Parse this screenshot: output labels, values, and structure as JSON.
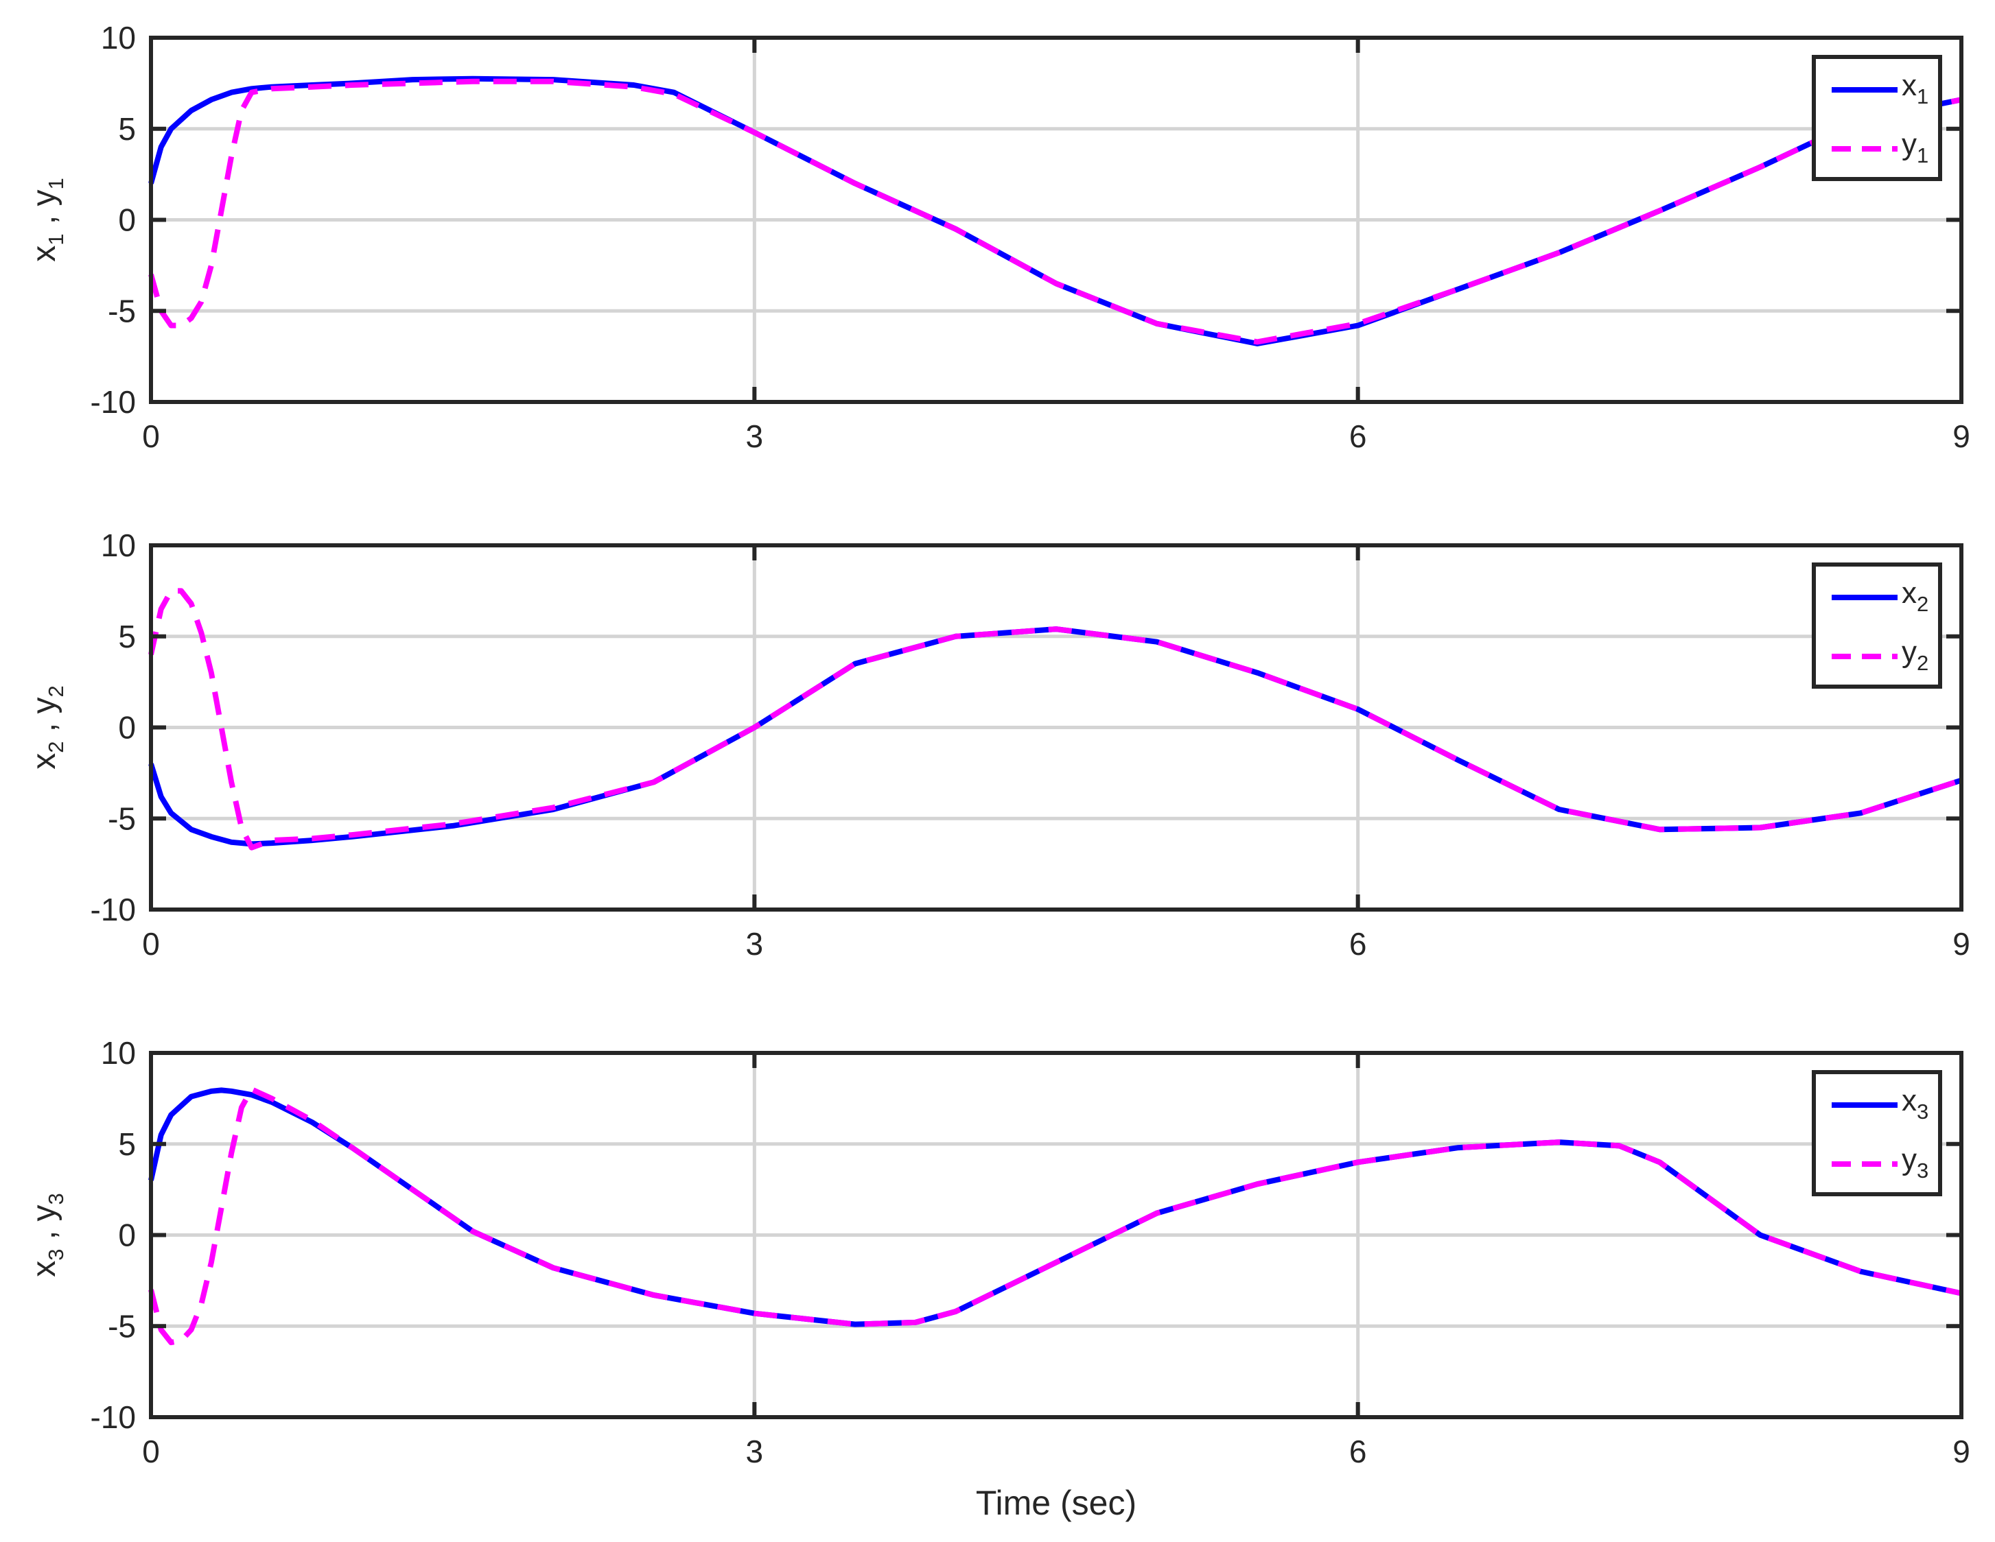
{
  "colors": {
    "x_series": "#0000ff",
    "y_series": "#ff00ff",
    "axes": "#262626",
    "grid": "#d4d4d4"
  },
  "shared_xlabel": "Time (sec)",
  "chart_data": [
    {
      "type": "line",
      "ylabel": {
        "var1": "x",
        "sub1": "1",
        "sep": " , ",
        "var2": "y",
        "sub2": "1"
      },
      "xlim": [
        0,
        9
      ],
      "ylim": [
        -10,
        10
      ],
      "xticks": [
        "0",
        "3",
        "6",
        "9"
      ],
      "yticks": [
        "10",
        "5",
        "0",
        "-5",
        "-10"
      ],
      "grid": true,
      "legend_position": "top-right",
      "series": [
        {
          "name": "x1",
          "label": {
            "var": "x",
            "sub": "1"
          },
          "style": "solid",
          "x": [
            0,
            0.05,
            0.1,
            0.2,
            0.3,
            0.4,
            0.5,
            0.6,
            0.8,
            1.0,
            1.3,
            1.6,
            2.0,
            2.4,
            2.6,
            3.0,
            3.5,
            4.0,
            4.5,
            5.0,
            5.5,
            6.0,
            6.5,
            7.0,
            7.5,
            8.0,
            8.5,
            9.0
          ],
          "y": [
            2.0,
            4.0,
            5.0,
            6.0,
            6.6,
            7.0,
            7.2,
            7.3,
            7.4,
            7.5,
            7.7,
            7.75,
            7.7,
            7.4,
            7.0,
            4.8,
            2.0,
            -0.5,
            -3.5,
            -5.7,
            -6.8,
            -5.8,
            -3.8,
            -1.8,
            0.5,
            2.9,
            5.5,
            6.6
          ]
        },
        {
          "name": "y1",
          "label": {
            "var": "y",
            "sub": "1"
          },
          "style": "dashed",
          "x": [
            0,
            0.05,
            0.1,
            0.15,
            0.2,
            0.25,
            0.3,
            0.35,
            0.4,
            0.45,
            0.5,
            0.6,
            0.8,
            1.0,
            1.3,
            1.6,
            2.0,
            2.4,
            2.6,
            3.0,
            3.5,
            4.0,
            4.5,
            5.0,
            5.5,
            6.0,
            6.5,
            7.0,
            7.5,
            8.0,
            8.5,
            9.0
          ],
          "y": [
            -3.0,
            -5.0,
            -5.8,
            -5.8,
            -5.4,
            -4.5,
            -2.5,
            0.5,
            3.5,
            6.0,
            7.0,
            7.2,
            7.3,
            7.4,
            7.5,
            7.6,
            7.6,
            7.3,
            6.9,
            4.8,
            2.0,
            -0.5,
            -3.5,
            -5.7,
            -6.7,
            -5.7,
            -3.8,
            -1.8,
            0.5,
            2.9,
            5.5,
            6.6
          ]
        }
      ]
    },
    {
      "type": "line",
      "ylabel": {
        "var1": "x",
        "sub1": "2",
        "sep": " , ",
        "var2": "y",
        "sub2": "2"
      },
      "xlim": [
        0,
        9
      ],
      "ylim": [
        -10,
        10
      ],
      "xticks": [
        "0",
        "3",
        "6",
        "9"
      ],
      "yticks": [
        "10",
        "5",
        "0",
        "-5",
        "-10"
      ],
      "grid": true,
      "legend_position": "top-right",
      "series": [
        {
          "name": "x2",
          "label": {
            "var": "x",
            "sub": "2"
          },
          "style": "solid",
          "x": [
            0,
            0.05,
            0.1,
            0.2,
            0.3,
            0.4,
            0.5,
            0.6,
            0.8,
            1.0,
            1.5,
            2.0,
            2.5,
            3.0,
            3.5,
            4.0,
            4.5,
            5.0,
            5.5,
            6.0,
            6.5,
            7.0,
            7.5,
            8.0,
            8.5,
            9.0
          ],
          "y": [
            -2.0,
            -3.8,
            -4.7,
            -5.6,
            -6.0,
            -6.3,
            -6.4,
            -6.35,
            -6.2,
            -6.0,
            -5.4,
            -4.5,
            -3.0,
            0.0,
            3.5,
            5.0,
            5.4,
            4.7,
            3.0,
            1.0,
            -1.8,
            -4.5,
            -5.6,
            -5.5,
            -4.7,
            -2.9
          ]
        },
        {
          "name": "y2",
          "label": {
            "var": "y",
            "sub": "2"
          },
          "style": "dashed",
          "x": [
            0,
            0.05,
            0.1,
            0.15,
            0.2,
            0.25,
            0.3,
            0.35,
            0.4,
            0.45,
            0.5,
            0.6,
            0.8,
            1.0,
            1.5,
            2.0,
            2.5,
            3.0,
            3.5,
            4.0,
            4.5,
            5.0,
            5.5,
            6.0,
            6.5,
            7.0,
            7.5,
            8.0,
            8.5,
            9.0
          ],
          "y": [
            4.0,
            6.5,
            7.5,
            7.5,
            6.8,
            5.2,
            3.0,
            0.0,
            -3.0,
            -5.5,
            -6.6,
            -6.2,
            -6.1,
            -5.9,
            -5.3,
            -4.4,
            -3.0,
            0.0,
            3.5,
            5.0,
            5.4,
            4.7,
            3.0,
            1.0,
            -1.8,
            -4.5,
            -5.6,
            -5.5,
            -4.7,
            -2.9
          ]
        }
      ]
    },
    {
      "type": "line",
      "xlabel": "Time (sec)",
      "ylabel": {
        "var1": "x",
        "sub1": "3",
        "sep": " , ",
        "var2": "y",
        "sub2": "3"
      },
      "xlim": [
        0,
        9
      ],
      "ylim": [
        -10,
        10
      ],
      "xticks": [
        "0",
        "3",
        "6",
        "9"
      ],
      "yticks": [
        "10",
        "5",
        "0",
        "-5",
        "-10"
      ],
      "grid": true,
      "legend_position": "top-right",
      "series": [
        {
          "name": "x3",
          "label": {
            "var": "x",
            "sub": "3"
          },
          "style": "solid",
          "x": [
            0,
            0.05,
            0.1,
            0.2,
            0.3,
            0.35,
            0.4,
            0.5,
            0.6,
            0.8,
            1.0,
            1.3,
            1.6,
            2.0,
            2.5,
            3.0,
            3.5,
            3.8,
            4.0,
            4.5,
            5.0,
            5.5,
            6.0,
            6.5,
            7.0,
            7.3,
            7.5,
            8.0,
            8.5,
            9.0
          ],
          "y": [
            3.0,
            5.5,
            6.6,
            7.6,
            7.9,
            7.95,
            7.9,
            7.7,
            7.3,
            6.2,
            4.8,
            2.5,
            0.2,
            -1.8,
            -3.3,
            -4.3,
            -4.9,
            -4.8,
            -4.2,
            -1.5,
            1.2,
            2.8,
            4.0,
            4.8,
            5.1,
            4.9,
            4.0,
            0.0,
            -2.0,
            -3.2
          ]
        },
        {
          "name": "y3",
          "label": {
            "var": "y",
            "sub": "3"
          },
          "style": "dashed",
          "x": [
            0,
            0.05,
            0.1,
            0.15,
            0.2,
            0.25,
            0.3,
            0.35,
            0.4,
            0.45,
            0.5,
            0.6,
            0.8,
            1.0,
            1.3,
            1.6,
            2.0,
            2.5,
            3.0,
            3.5,
            3.8,
            4.0,
            4.5,
            5.0,
            5.5,
            6.0,
            6.5,
            7.0,
            7.3,
            7.5,
            8.0,
            8.5,
            9.0
          ],
          "y": [
            -3.0,
            -5.2,
            -5.9,
            -5.8,
            -5.2,
            -3.8,
            -1.5,
            1.5,
            4.5,
            7.0,
            8.0,
            7.5,
            6.3,
            4.8,
            2.5,
            0.2,
            -1.8,
            -3.3,
            -4.3,
            -4.9,
            -4.8,
            -4.2,
            -1.5,
            1.2,
            2.8,
            4.0,
            4.8,
            5.1,
            4.9,
            4.0,
            0.0,
            -2.0,
            -3.2
          ]
        }
      ]
    }
  ]
}
